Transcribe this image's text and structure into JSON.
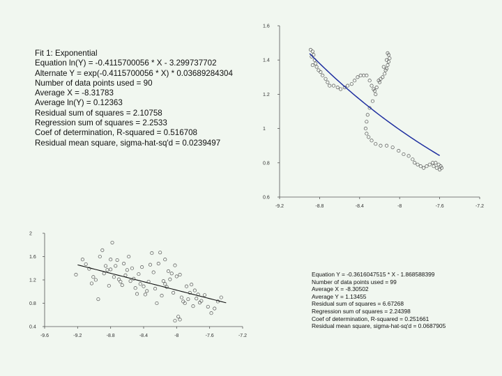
{
  "stats_top": {
    "lines": [
      "Fit 1: Exponential",
      "Equation ln(Y) = -0.4115700056 * X - 3.299737702",
      "Alternate Y = exp(-0.4115700056 * X) * 0.03689284304",
      "Number of data points used = 90",
      "Average X = -8.31783",
      "Average ln(Y) = 0.12363",
      "Residual sum of squares = 2.10758",
      "Regression sum of squares = 2.2533",
      "Coef of determination, R-squared = 0.516708",
      "Residual mean square, sigma-hat-sq'd = 0.0239497"
    ]
  },
  "stats_bottom": {
    "lines": [
      "Equation Y = -0.3616047515 * X - 1.868588399",
      "Number of data points used = 99",
      "Average X = -8.30502",
      "Average Y = 1.13455",
      "Residual sum of squares = 6.67268",
      "Regression sum of squares = 2.24398",
      "Coef of determination, R-squared = 0.251661",
      "Residual mean square, sigma-hat-sq'd = 0.0687905"
    ]
  },
  "chart_data": [
    {
      "type": "scatter",
      "title": "",
      "xlabel": "",
      "ylabel": "",
      "xlim": [
        -9.2,
        -7.2
      ],
      "ylim": [
        0.6,
        1.6
      ],
      "grid": false,
      "x_ticks": [
        -9.2,
        -8.8,
        -8.4,
        -8.0,
        -7.6,
        -7.2
      ],
      "x_tick_labels": [
        "-9.2",
        "-8.8",
        "-8.4",
        "-8",
        "-7.6",
        "-7.2"
      ],
      "y_ticks": [
        1.6,
        1.4,
        1.2,
        1.0,
        0.8,
        0.6
      ],
      "y_tick_labels": [
        "1.6",
        "1.4",
        "1.2",
        "1",
        "0.8",
        "0.6"
      ],
      "fit": {
        "kind": "exponential",
        "a": 0.03689284304,
        "b": -0.4115700056,
        "x_range": [
          -8.9,
          -7.6
        ]
      },
      "points": [
        [
          -8.89,
          1.46
        ],
        [
          -8.87,
          1.45
        ],
        [
          -8.86,
          1.43
        ],
        [
          -8.88,
          1.42
        ],
        [
          -8.85,
          1.4
        ],
        [
          -8.84,
          1.38
        ],
        [
          -8.83,
          1.36
        ],
        [
          -8.87,
          1.37
        ],
        [
          -8.81,
          1.34
        ],
        [
          -8.79,
          1.33
        ],
        [
          -8.77,
          1.31
        ],
        [
          -8.74,
          1.29
        ],
        [
          -8.72,
          1.27
        ],
        [
          -8.7,
          1.25
        ],
        [
          -8.66,
          1.25
        ],
        [
          -8.62,
          1.24
        ],
        [
          -8.59,
          1.23
        ],
        [
          -8.55,
          1.24
        ],
        [
          -8.52,
          1.25
        ],
        [
          -8.48,
          1.26
        ],
        [
          -8.45,
          1.28
        ],
        [
          -8.42,
          1.3
        ],
        [
          -8.39,
          1.31
        ],
        [
          -8.36,
          1.31
        ],
        [
          -8.33,
          1.31
        ],
        [
          -8.3,
          1.28
        ],
        [
          -8.28,
          1.25
        ],
        [
          -8.26,
          1.23
        ],
        [
          -8.25,
          1.22
        ],
        [
          -8.23,
          1.24
        ],
        [
          -8.21,
          1.28
        ],
        [
          -8.19,
          1.29
        ],
        [
          -8.17,
          1.3
        ],
        [
          -8.15,
          1.32
        ],
        [
          -8.14,
          1.34
        ],
        [
          -8.13,
          1.35
        ],
        [
          -8.12,
          1.37
        ],
        [
          -8.11,
          1.39
        ],
        [
          -8.1,
          1.41
        ],
        [
          -8.11,
          1.43
        ],
        [
          -8.12,
          1.44
        ],
        [
          -8.13,
          1.4
        ],
        [
          -8.16,
          1.36
        ],
        [
          -8.2,
          1.27
        ],
        [
          -8.24,
          1.2
        ],
        [
          -8.27,
          1.16
        ],
        [
          -8.3,
          1.12
        ],
        [
          -8.32,
          1.08
        ],
        [
          -8.33,
          1.04
        ],
        [
          -8.34,
          1.0
        ],
        [
          -8.33,
          0.97
        ],
        [
          -8.31,
          0.95
        ],
        [
          -8.28,
          0.93
        ],
        [
          -8.24,
          0.91
        ],
        [
          -8.19,
          0.9
        ],
        [
          -8.13,
          0.9
        ],
        [
          -8.07,
          0.89
        ],
        [
          -8.01,
          0.87
        ],
        [
          -7.96,
          0.85
        ],
        [
          -7.91,
          0.84
        ],
        [
          -7.87,
          0.82
        ],
        [
          -7.85,
          0.8
        ],
        [
          -7.82,
          0.79
        ],
        [
          -7.79,
          0.78
        ],
        [
          -7.76,
          0.77
        ],
        [
          -7.73,
          0.78
        ],
        [
          -7.7,
          0.79
        ],
        [
          -7.67,
          0.8
        ],
        [
          -7.64,
          0.8
        ],
        [
          -7.61,
          0.79
        ],
        [
          -7.59,
          0.78
        ],
        [
          -7.58,
          0.77
        ],
        [
          -7.6,
          0.76
        ],
        [
          -7.63,
          0.77
        ],
        [
          -7.66,
          0.78
        ]
      ]
    },
    {
      "type": "scatter",
      "title": "",
      "xlabel": "",
      "ylabel": "",
      "xlim": [
        -9.6,
        -7.2
      ],
      "ylim": [
        0.4,
        2.0
      ],
      "grid": false,
      "x_ticks": [
        -9.6,
        -9.2,
        -8.8,
        -8.4,
        -8.0,
        -7.6,
        -7.2
      ],
      "x_tick_labels": [
        "-9.6",
        "-9.2",
        "-8.8",
        "-8.4",
        "-8",
        "-7.6",
        "-7.2"
      ],
      "y_ticks": [
        2.0,
        1.6,
        1.2,
        0.8,
        0.4
      ],
      "y_tick_labels": [
        "2",
        "1.6",
        "1.2",
        "0.8",
        "0.4"
      ],
      "fit": {
        "kind": "linear",
        "slope": -0.3616047515,
        "intercept": -1.868588399,
        "x_range": [
          -9.2,
          -7.4
        ]
      },
      "points": [
        [
          -9.22,
          1.29
        ],
        [
          -9.14,
          1.55
        ],
        [
          -9.1,
          1.47
        ],
        [
          -9.06,
          1.39
        ],
        [
          -9.03,
          1.14
        ],
        [
          -9.01,
          1.25
        ],
        [
          -8.98,
          1.2
        ],
        [
          -8.95,
          0.87
        ],
        [
          -8.93,
          1.6
        ],
        [
          -8.9,
          1.71
        ],
        [
          -8.88,
          1.31
        ],
        [
          -8.86,
          1.44
        ],
        [
          -8.84,
          1.37
        ],
        [
          -8.82,
          1.1
        ],
        [
          -8.8,
          1.38
        ],
        [
          -8.78,
          1.84
        ],
        [
          -8.76,
          1.25
        ],
        [
          -8.74,
          1.44
        ],
        [
          -8.72,
          1.54
        ],
        [
          -8.7,
          1.21
        ],
        [
          -8.68,
          1.17
        ],
        [
          -8.66,
          1.11
        ],
        [
          -8.64,
          1.48
        ],
        [
          -8.62,
          1.28
        ],
        [
          -8.6,
          1.37
        ],
        [
          -8.58,
          1.6
        ],
        [
          -8.56,
          1.18
        ],
        [
          -8.54,
          1.4
        ],
        [
          -8.52,
          1.22
        ],
        [
          -8.5,
          1.06
        ],
        [
          -8.48,
          0.96
        ],
        [
          -8.46,
          1.3
        ],
        [
          -8.44,
          1.13
        ],
        [
          -8.42,
          1.42
        ],
        [
          -8.4,
          1.09
        ],
        [
          -8.38,
          0.95
        ],
        [
          -8.36,
          1.01
        ],
        [
          -8.34,
          1.17
        ],
        [
          -8.32,
          1.46
        ],
        [
          -8.3,
          1.66
        ],
        [
          -8.28,
          1.33
        ],
        [
          -8.26,
          1.05
        ],
        [
          -8.24,
          0.8
        ],
        [
          -8.22,
          1.48
        ],
        [
          -8.2,
          1.67
        ],
        [
          -8.18,
          0.93
        ],
        [
          -8.16,
          1.18
        ],
        [
          -8.14,
          1.13
        ],
        [
          -8.12,
          1.08
        ],
        [
          -8.1,
          1.35
        ],
        [
          -8.08,
          1.21
        ],
        [
          -8.06,
          1.31
        ],
        [
          -8.04,
          0.98
        ],
        [
          -8.02,
          1.45
        ],
        [
          -8.0,
          1.26
        ],
        [
          -7.98,
          0.57
        ],
        [
          -7.96,
          1.29
        ],
        [
          -7.94,
          0.9
        ],
        [
          -7.92,
          0.83
        ],
        [
          -7.9,
          0.8
        ],
        [
          -7.88,
          1.09
        ],
        [
          -7.86,
          0.87
        ],
        [
          -7.84,
          0.98
        ],
        [
          -7.82,
          1.12
        ],
        [
          -7.8,
          0.75
        ],
        [
          -7.78,
          1.02
        ],
        [
          -7.76,
          0.88
        ],
        [
          -7.74,
          0.95
        ],
        [
          -7.72,
          0.81
        ],
        [
          -7.7,
          0.84
        ],
        [
          -7.66,
          0.94
        ],
        [
          -7.62,
          0.74
        ],
        [
          -7.58,
          0.63
        ],
        [
          -7.54,
          0.71
        ],
        [
          -7.5,
          0.83
        ],
        [
          -7.46,
          0.9
        ],
        [
          -8.8,
          1.55
        ],
        [
          -8.14,
          1.55
        ],
        [
          -7.96,
          0.52
        ],
        [
          -8.02,
          0.5
        ]
      ]
    }
  ]
}
